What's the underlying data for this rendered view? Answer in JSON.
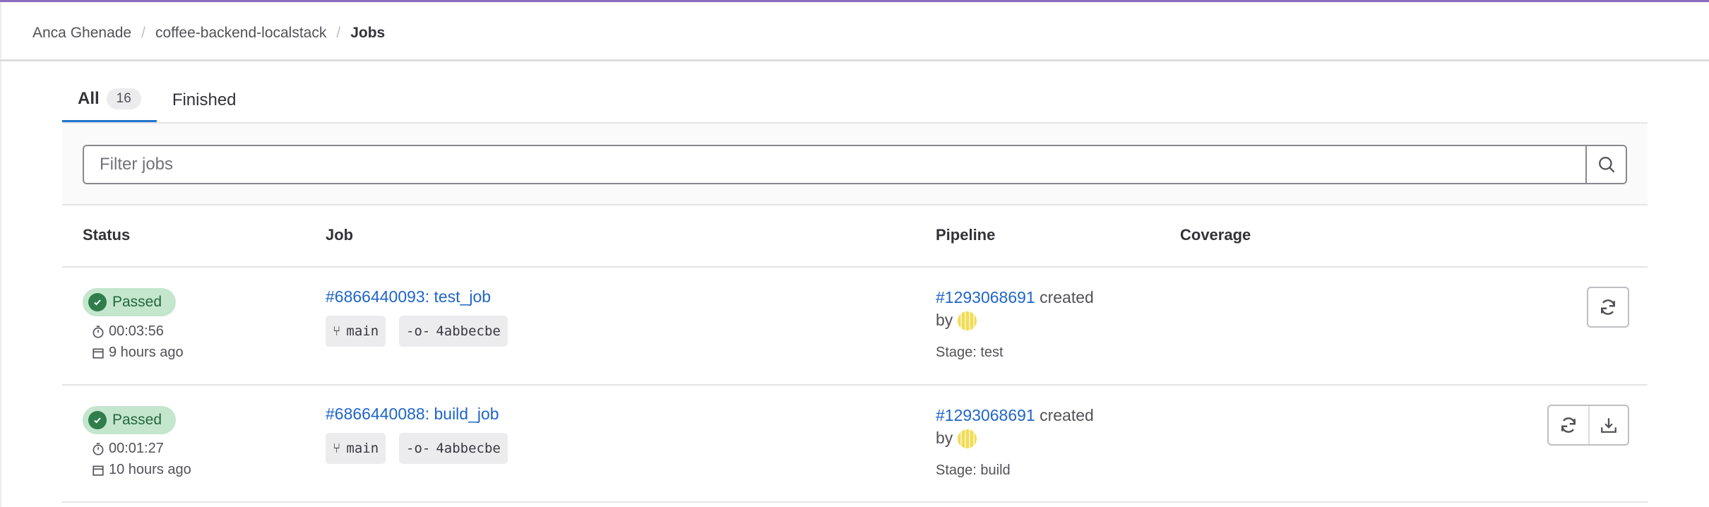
{
  "breadcrumb": {
    "items": [
      "Anca Ghenade",
      "coffee-backend-localstack"
    ],
    "current": "Jobs",
    "separator": "/"
  },
  "tabs": [
    {
      "label": "All",
      "count": "16",
      "active": true
    },
    {
      "label": "Finished",
      "active": false
    }
  ],
  "filter": {
    "placeholder": "Filter jobs",
    "value": "",
    "search_icon": "search-icon"
  },
  "table": {
    "headers": {
      "status": "Status",
      "job": "Job",
      "pipeline": "Pipeline",
      "coverage": "Coverage"
    },
    "rows": [
      {
        "status": "Passed",
        "duration": "00:03:56",
        "finished": "9 hours ago",
        "job": "#6866440093: test_job",
        "branch": "main",
        "commit": "4abbecbe",
        "pipeline": "#1293068691",
        "created": "created",
        "by": "by",
        "stage": "Stage: test",
        "actions": [
          "retry"
        ]
      },
      {
        "status": "Passed",
        "duration": "00:01:27",
        "finished": "10 hours ago",
        "job": "#6866440088: build_job",
        "branch": "main",
        "commit": "4abbecbe",
        "pipeline": "#1293068691",
        "created": "created",
        "by": "by",
        "stage": "Stage: build",
        "actions": [
          "retry",
          "download"
        ]
      }
    ]
  },
  "colors": {
    "accent": "#1f75cb",
    "link": "#1f65c8",
    "success_bg": "#c3e6cd",
    "success": "#2f7d4a",
    "topbar": "#8b6cbf"
  }
}
